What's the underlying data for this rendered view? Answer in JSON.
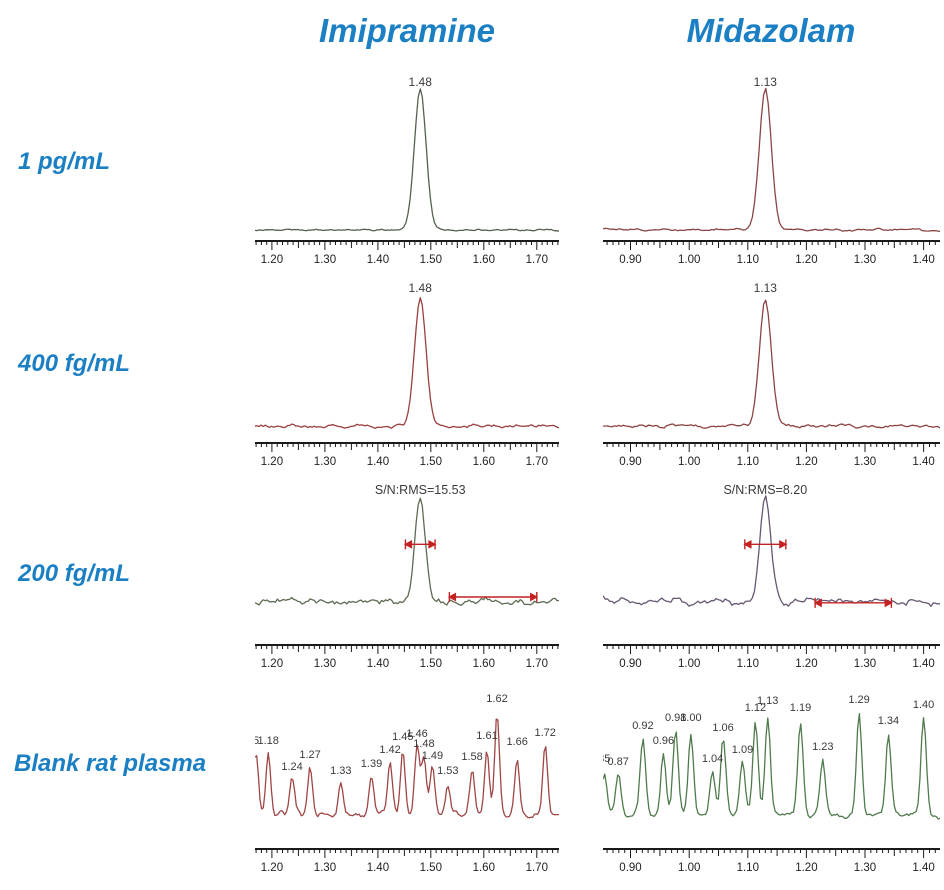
{
  "colors": {
    "accent_blue": "#1b7fc4",
    "axis": "#1a1a1a",
    "tick_label": "#222222",
    "peak_label": "#3a3a3a",
    "sn_arrow_red": "#c42222"
  },
  "chart_data": {
    "type": "line",
    "figure": "LC-MS/MS extracted ion chromatograms",
    "columns": [
      "Imipramine",
      "Midazolam"
    ],
    "row_labels": [
      "1 pg/mL",
      "400 fg/mL",
      "200 fg/mL",
      "Blank rat plasma"
    ],
    "xlabel": "",
    "ylabel": "",
    "grid": false,
    "panels": [
      {
        "id": "imipramine-1pgml",
        "row": 0,
        "col": 0,
        "xmin": 1.168,
        "xmax": 1.742,
        "ticks": [
          1.2,
          1.3,
          1.4,
          1.5,
          1.6,
          1.7
        ],
        "color": "#55614e",
        "seed": 11,
        "noise": 1.4,
        "peak": {
          "x": 1.48,
          "label": "1.48",
          "height": 0.97,
          "sigma": 0.011
        }
      },
      {
        "id": "midazolam-1pgml",
        "row": 0,
        "col": 1,
        "xmin": 0.853,
        "xmax": 1.428,
        "ticks": [
          0.9,
          1.0,
          1.1,
          1.2,
          1.3,
          1.4
        ],
        "color": "#8a4545",
        "seed": 27,
        "noise": 1.8,
        "peak": {
          "x": 1.13,
          "label": "1.13",
          "height": 0.97,
          "sigma": 0.01
        }
      },
      {
        "id": "imipramine-400fgml",
        "row": 1,
        "col": 0,
        "xmin": 1.168,
        "xmax": 1.742,
        "ticks": [
          1.2,
          1.3,
          1.4,
          1.5,
          1.6,
          1.7
        ],
        "color": "#9a4040",
        "seed": 33,
        "noise": 2.6,
        "peak": {
          "x": 1.48,
          "label": "1.48",
          "height": 0.95,
          "sigma": 0.011
        }
      },
      {
        "id": "midazolam-400fgml",
        "row": 1,
        "col": 1,
        "xmin": 0.853,
        "xmax": 1.428,
        "ticks": [
          0.9,
          1.0,
          1.1,
          1.2,
          1.3,
          1.4
        ],
        "color": "#8d4343",
        "seed": 44,
        "noise": 3.1,
        "peak": {
          "x": 1.13,
          "label": "1.13",
          "height": 0.95,
          "sigma": 0.01
        }
      },
      {
        "id": "imipramine-200fgml",
        "row": 2,
        "col": 0,
        "xmin": 1.168,
        "xmax": 1.742,
        "ticks": [
          1.2,
          1.3,
          1.4,
          1.5,
          1.6,
          1.7
        ],
        "color": "#5d6b52",
        "seed": 55,
        "noise": 5,
        "peak": {
          "x": 1.48,
          "label": "",
          "height": 0.95,
          "sigma": 0.01
        },
        "sn_label": "S/N:RMS=15.53",
        "arrows": [
          {
            "x1": 1.452,
            "x2": 1.508,
            "yf": 0.33
          },
          {
            "x1": 1.535,
            "x2": 1.7,
            "yf": 0.6
          }
        ]
      },
      {
        "id": "midazolam-200fgml",
        "row": 2,
        "col": 1,
        "xmin": 0.853,
        "xmax": 1.428,
        "ticks": [
          0.9,
          1.0,
          1.1,
          1.2,
          1.3,
          1.4
        ],
        "color": "#665772",
        "seed": 66,
        "noise": 5.5,
        "peak": {
          "x": 1.13,
          "label": "",
          "height": 0.95,
          "sigma": 0.009
        },
        "sn_label": "S/N:RMS=8.20",
        "arrows": [
          {
            "x1": 1.095,
            "x2": 1.165,
            "yf": 0.33
          },
          {
            "x1": 1.215,
            "x2": 1.345,
            "yf": 0.63
          }
        ]
      },
      {
        "id": "imipramine-blank",
        "row": 3,
        "col": 0,
        "xmin": 1.168,
        "xmax": 1.742,
        "ticks": [
          1.2,
          1.3,
          1.4,
          1.5,
          1.6,
          1.7
        ],
        "color": "#a04545",
        "seed": 77,
        "noise": 4.5,
        "labeled_peaks": [
          {
            "x": 1.17,
            "yf": 0.27,
            "label": "5"
          },
          {
            "x": 1.193,
            "yf": 0.27,
            "label": "1.18"
          },
          {
            "x": 1.238,
            "yf": 0.4,
            "label": "1.24"
          },
          {
            "x": 1.272,
            "yf": 0.34,
            "label": "1.27"
          },
          {
            "x": 1.33,
            "yf": 0.42,
            "label": "1.33"
          },
          {
            "x": 1.388,
            "yf": 0.385,
            "label": "1.39"
          },
          {
            "x": 1.423,
            "yf": 0.315,
            "label": "1.42"
          },
          {
            "x": 1.447,
            "yf": 0.25,
            "label": "1.45"
          },
          {
            "x": 1.474,
            "yf": 0.235,
            "label": "1.46"
          },
          {
            "x": 1.487,
            "yf": 0.285,
            "label": "1.48"
          },
          {
            "x": 1.503,
            "yf": 0.345,
            "label": "1.49"
          },
          {
            "x": 1.532,
            "yf": 0.42,
            "label": "1.53"
          },
          {
            "x": 1.578,
            "yf": 0.35,
            "label": "1.58"
          },
          {
            "x": 1.606,
            "yf": 0.245,
            "label": "1.61"
          },
          {
            "x": 1.625,
            "yf": 0.06,
            "label": "1.62"
          },
          {
            "x": 1.663,
            "yf": 0.275,
            "label": "1.66"
          },
          {
            "x": 1.716,
            "yf": 0.23,
            "label": "1.72"
          }
        ]
      },
      {
        "id": "midazolam-blank",
        "row": 3,
        "col": 1,
        "xmin": 0.853,
        "xmax": 1.428,
        "ticks": [
          0.9,
          1.0,
          1.1,
          1.2,
          1.3,
          1.4
        ],
        "color": "#4f7b4c",
        "seed": 88,
        "noise": 4.8,
        "labeled_peaks": [
          {
            "x": 0.855,
            "yf": 0.36,
            "label": "85"
          },
          {
            "x": 0.879,
            "yf": 0.375,
            "label": "0.87"
          },
          {
            "x": 0.921,
            "yf": 0.195,
            "label": "0.92"
          },
          {
            "x": 0.956,
            "yf": 0.27,
            "label": "0.96"
          },
          {
            "x": 0.977,
            "yf": 0.155,
            "label": "0.98"
          },
          {
            "x": 1.003,
            "yf": 0.155,
            "label": "1.00"
          },
          {
            "x": 1.04,
            "yf": 0.36,
            "label": "1.04"
          },
          {
            "x": 1.058,
            "yf": 0.205,
            "label": "1.06"
          },
          {
            "x": 1.091,
            "yf": 0.315,
            "label": "1.09"
          },
          {
            "x": 1.113,
            "yf": 0.105,
            "label": "1.12"
          },
          {
            "x": 1.134,
            "yf": 0.07,
            "label": "1.13"
          },
          {
            "x": 1.19,
            "yf": 0.105,
            "label": "1.19"
          },
          {
            "x": 1.228,
            "yf": 0.3,
            "label": "1.23"
          },
          {
            "x": 1.29,
            "yf": 0.065,
            "label": "1.29"
          },
          {
            "x": 1.34,
            "yf": 0.17,
            "label": "1.34"
          },
          {
            "x": 1.4,
            "yf": 0.09,
            "label": "1.40"
          }
        ]
      }
    ]
  }
}
